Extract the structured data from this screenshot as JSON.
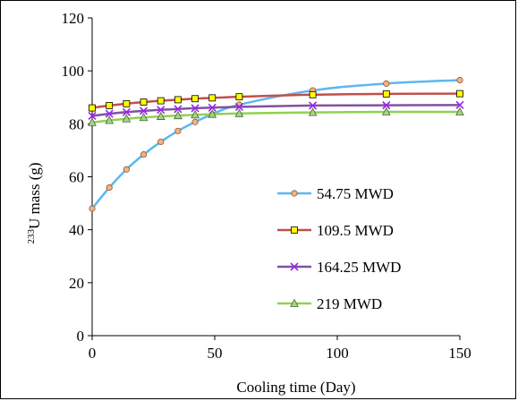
{
  "chart_data": {
    "type": "line",
    "title": "",
    "xlabel": "Cooling time (Day)",
    "ylabel_superscript": "233",
    "ylabel_main": "U mass (g)",
    "xlim": [
      0,
      150
    ],
    "ylim": [
      0,
      120
    ],
    "x_ticks": [
      "0",
      "50",
      "100",
      "150"
    ],
    "y_ticks": [
      "0",
      "20",
      "40",
      "60",
      "80",
      "100",
      "120"
    ],
    "grid": false,
    "legend_position": "lower-right",
    "x": [
      0,
      7,
      14,
      21,
      28,
      35,
      42,
      49,
      60,
      90,
      120,
      150
    ],
    "series": [
      {
        "name": "54.75 MWD",
        "color": "#5bb8f0",
        "marker": "circle",
        "marker_fill": "#f4b183",
        "marker_stroke": "#8c5a33",
        "values": [
          48.0,
          55.9,
          62.8,
          68.4,
          73.2,
          77.3,
          80.7,
          83.6,
          87.2,
          92.6,
          95.2,
          96.5
        ]
      },
      {
        "name": "109.5 MWD",
        "color": "#c0504d",
        "marker": "square",
        "marker_fill": "#ffff00",
        "marker_stroke": "#000000",
        "values": [
          86.0,
          86.9,
          87.6,
          88.2,
          88.7,
          89.1,
          89.5,
          89.8,
          90.2,
          91.0,
          91.3,
          91.4
        ]
      },
      {
        "name": "164.25 MWD",
        "color": "#7f52a3",
        "marker": "cross",
        "marker_fill": "none",
        "marker_stroke": "#a020f0",
        "values": [
          83.0,
          83.8,
          84.4,
          84.9,
          85.3,
          85.6,
          85.9,
          86.1,
          86.4,
          86.9,
          87.0,
          87.1
        ]
      },
      {
        "name": "219 MWD",
        "color": "#92d050",
        "marker": "triangle",
        "marker_fill": "#a9d18e",
        "marker_stroke": "#3f6e2a",
        "values": [
          80.5,
          81.3,
          81.9,
          82.4,
          82.8,
          83.1,
          83.4,
          83.6,
          83.9,
          84.3,
          84.5,
          84.5
        ]
      }
    ]
  }
}
